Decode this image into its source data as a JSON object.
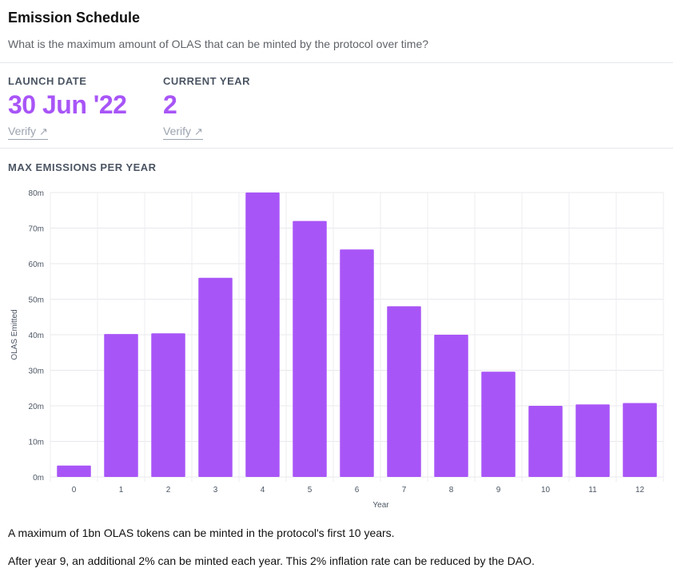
{
  "header": {
    "title": "Emission Schedule",
    "subtitle": "What is the maximum amount of OLAS that can be minted by the protocol over time?"
  },
  "stats": [
    {
      "label": "LAUNCH DATE",
      "value": "30 Jun '22",
      "link": "Verify"
    },
    {
      "label": "CURRENT YEAR",
      "value": "2",
      "link": "Verify"
    }
  ],
  "icons": {
    "external_link": "arrow-up-right-icon"
  },
  "section": {
    "label": "MAX EMISSIONS PER YEAR"
  },
  "chart_data": {
    "type": "bar",
    "title": "MAX EMISSIONS PER YEAR",
    "xlabel": "Year",
    "ylabel": "OLAS Emitted",
    "categories": [
      "0",
      "1",
      "2",
      "3",
      "4",
      "5",
      "6",
      "7",
      "8",
      "9",
      "10",
      "11",
      "12"
    ],
    "values": [
      3.2,
      40.2,
      40.4,
      56,
      80,
      72,
      64,
      48,
      40,
      29.6,
      20,
      20.4,
      20.8
    ],
    "yticks": [
      0,
      10,
      20,
      30,
      40,
      50,
      60,
      70,
      80
    ],
    "ytick_labels": [
      "0m",
      "10m",
      "20m",
      "30m",
      "40m",
      "50m",
      "60m",
      "70m",
      "80m"
    ],
    "ylim": [
      0,
      80
    ],
    "grid": true,
    "color": "#a855f7"
  },
  "footer": {
    "line1": "A maximum of 1bn OLAS tokens can be minted in the protocol's first 10 years.",
    "line2": "After year 9, an additional 2% can be minted each year. This 2% inflation rate can be reduced by the DAO."
  }
}
